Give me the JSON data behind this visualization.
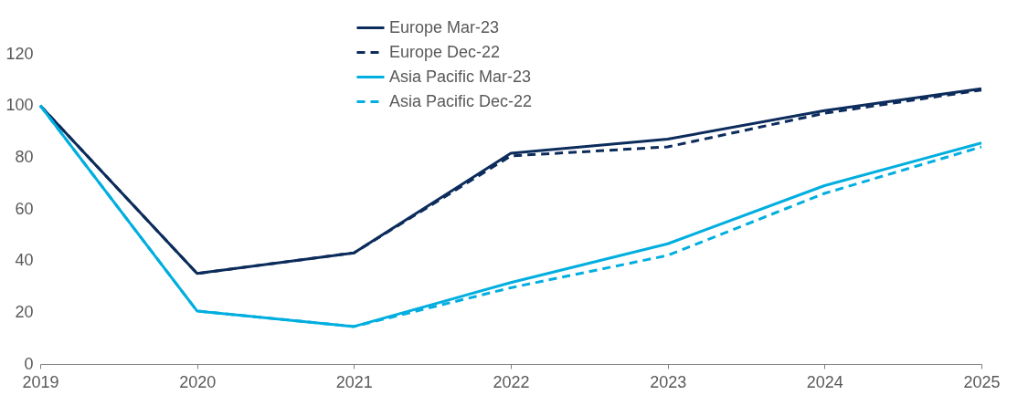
{
  "chart_data": {
    "type": "line",
    "x": [
      2019,
      2020,
      2021,
      2022,
      2023,
      2024,
      2025
    ],
    "xlim": [
      2019,
      2025
    ],
    "xticks": [
      2019,
      2020,
      2021,
      2022,
      2023,
      2024,
      2025
    ],
    "ylim": [
      0,
      120
    ],
    "yticks": [
      0,
      20,
      40,
      60,
      80,
      100,
      120
    ],
    "grid": false,
    "legend": "top",
    "marker": "none",
    "series": [
      {
        "name": "Europe Mar-23",
        "color": "#0c2c5c",
        "line_style": "solid",
        "values": [
          100,
          35,
          43,
          81.5,
          87,
          98,
          106.5
        ]
      },
      {
        "name": "Europe Dec-22",
        "color": "#0c2c5c",
        "line_style": "dashed",
        "values": [
          100,
          35,
          43,
          80.5,
          84,
          97,
          106
        ]
      },
      {
        "name": "Asia Pacific Mar-23",
        "color": "#00aedf",
        "line_style": "solid",
        "values": [
          100,
          20.5,
          14.5,
          31.5,
          46.5,
          69,
          85.5
        ]
      },
      {
        "name": "Asia Pacific Dec-22",
        "color": "#00aedf",
        "line_style": "dashed",
        "values": [
          100,
          20.5,
          14.5,
          29.5,
          42,
          66,
          84
        ]
      }
    ]
  }
}
